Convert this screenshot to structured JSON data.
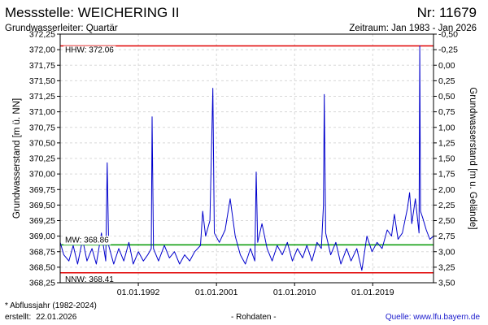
{
  "header": {
    "title": "Messstelle: WEICHERING II",
    "number": "Nr: 11679",
    "aquifer": "Grundwasserleiter: Quartär",
    "period": "Zeitraum: Jan 1983 - Jan 2026"
  },
  "footer": {
    "footnote": "* Abflussjahr (1982-2024)",
    "created_label": "erstellt:",
    "created_date": "22.01.2026",
    "raw": "- Rohdaten -",
    "source": "Quelle: www.lfu.bayern.de"
  },
  "chart_data": {
    "type": "line",
    "ylabel": "Grundwasserstand [m ü. NN]",
    "ylabel_right": "Grundwasserstand [m u. Gelände]",
    "ylim": [
      368.25,
      372.25
    ],
    "yticks": [
      "368,25",
      "368,50",
      "368,75",
      "369,00",
      "369,25",
      "369,50",
      "369,75",
      "370,00",
      "370,25",
      "370,50",
      "370,75",
      "371,00",
      "371,25",
      "371,50",
      "371,75",
      "372,00",
      "372,25"
    ],
    "ylim_right": [
      3.5,
      -0.5
    ],
    "yticks_right": [
      "3,50",
      "3,25",
      "3,00",
      "2,75",
      "2,50",
      "2,25",
      "2,00",
      "1,75",
      "1,50",
      "1,25",
      "1,00",
      "0,75",
      "0,50",
      "0,25",
      "0,00",
      "-0,25",
      "-0,50"
    ],
    "xlim": [
      "1983-01-01",
      "2026-01-01"
    ],
    "xticks": [
      {
        "date": "1992-01-01",
        "label": "01.01.1992"
      },
      {
        "date": "2001-01-01",
        "label": "01.01.2001"
      },
      {
        "date": "2010-01-01",
        "label": "01.01.2010"
      },
      {
        "date": "2019-01-01",
        "label": "01.01.2019"
      }
    ],
    "grid": true,
    "series_color": "#0000cc",
    "reference_lines": [
      {
        "name": "HHW",
        "label": "HHW: 372.06",
        "value": 372.06,
        "color": "#e00000"
      },
      {
        "name": "MW",
        "label": "MW: 368.86",
        "value": 368.86,
        "color": "#009900"
      },
      {
        "name": "NNW",
        "label": "NNW: 368.41",
        "value": 368.41,
        "color": "#e00000"
      }
    ],
    "series": [
      {
        "points": [
          [
            "1983-01-01",
            368.9
          ],
          [
            "1983-06-01",
            368.7
          ],
          [
            "1984-01-01",
            368.6
          ],
          [
            "1984-07-01",
            368.85
          ],
          [
            "1985-01-01",
            368.55
          ],
          [
            "1985-08-01",
            368.95
          ],
          [
            "1986-02-01",
            368.6
          ],
          [
            "1986-09-01",
            368.8
          ],
          [
            "1987-03-01",
            368.55
          ],
          [
            "1987-10-01",
            369.05
          ],
          [
            "1988-04-01",
            368.6
          ],
          [
            "1988-06-01",
            370.18
          ],
          [
            "1988-08-01",
            368.85
          ],
          [
            "1989-03-01",
            368.55
          ],
          [
            "1989-10-01",
            368.8
          ],
          [
            "1990-05-01",
            368.6
          ],
          [
            "1990-12-01",
            368.9
          ],
          [
            "1991-06-01",
            368.55
          ],
          [
            "1992-01-01",
            368.75
          ],
          [
            "1992-08-01",
            368.6
          ],
          [
            "1993-02-01",
            368.7
          ],
          [
            "1993-07-01",
            368.8
          ],
          [
            "1993-08-01",
            370.92
          ],
          [
            "1993-10-01",
            368.8
          ],
          [
            "1994-05-01",
            368.6
          ],
          [
            "1995-01-01",
            368.85
          ],
          [
            "1995-08-01",
            368.65
          ],
          [
            "1996-03-01",
            368.75
          ],
          [
            "1996-10-01",
            368.55
          ],
          [
            "1997-05-01",
            368.7
          ],
          [
            "1997-12-01",
            368.6
          ],
          [
            "1998-07-01",
            368.75
          ],
          [
            "1999-03-01",
            368.85
          ],
          [
            "1999-06-01",
            369.4
          ],
          [
            "1999-10-01",
            369.0
          ],
          [
            "2000-04-01",
            369.25
          ],
          [
            "2000-08-01",
            371.38
          ],
          [
            "2000-10-01",
            369.05
          ],
          [
            "2001-05-01",
            368.9
          ],
          [
            "2002-01-01",
            369.1
          ],
          [
            "2002-08-01",
            369.6
          ],
          [
            "2003-03-01",
            369.0
          ],
          [
            "2003-10-01",
            368.7
          ],
          [
            "2004-05-01",
            368.55
          ],
          [
            "2004-12-01",
            368.8
          ],
          [
            "2005-06-01",
            368.6
          ],
          [
            "2005-08-01",
            370.03
          ],
          [
            "2005-10-01",
            368.9
          ],
          [
            "2006-04-01",
            369.2
          ],
          [
            "2006-11-01",
            368.8
          ],
          [
            "2007-06-01",
            368.6
          ],
          [
            "2008-01-01",
            368.85
          ],
          [
            "2008-08-01",
            368.7
          ],
          [
            "2009-03-01",
            368.9
          ],
          [
            "2009-10-01",
            368.6
          ],
          [
            "2010-05-01",
            368.8
          ],
          [
            "2010-12-01",
            368.65
          ],
          [
            "2011-06-01",
            368.85
          ],
          [
            "2012-01-01",
            368.6
          ],
          [
            "2012-08-01",
            368.9
          ],
          [
            "2013-02-01",
            368.8
          ],
          [
            "2013-05-01",
            369.5
          ],
          [
            "2013-06-01",
            371.28
          ],
          [
            "2013-08-01",
            369.05
          ],
          [
            "2014-03-01",
            368.7
          ],
          [
            "2014-10-01",
            368.9
          ],
          [
            "2015-05-01",
            368.55
          ],
          [
            "2016-01-01",
            368.8
          ],
          [
            "2016-07-01",
            368.6
          ],
          [
            "2017-03-01",
            368.8
          ],
          [
            "2017-10-01",
            368.45
          ],
          [
            "2018-05-01",
            369.0
          ],
          [
            "2018-12-01",
            368.75
          ],
          [
            "2019-07-01",
            368.9
          ],
          [
            "2020-02-01",
            368.8
          ],
          [
            "2020-09-01",
            369.1
          ],
          [
            "2021-03-01",
            369.0
          ],
          [
            "2021-07-01",
            369.35
          ],
          [
            "2021-12-01",
            368.95
          ],
          [
            "2022-06-01",
            369.05
          ],
          [
            "2023-01-01",
            369.45
          ],
          [
            "2023-04-01",
            369.7
          ],
          [
            "2023-07-01",
            369.2
          ],
          [
            "2023-12-01",
            369.6
          ],
          [
            "2024-05-01",
            369.05
          ],
          [
            "2024-06-01",
            372.06
          ],
          [
            "2024-07-01",
            369.4
          ],
          [
            "2024-10-01",
            369.3
          ],
          [
            "2025-03-01",
            369.1
          ],
          [
            "2025-08-01",
            368.95
          ],
          [
            "2026-01-01",
            369.0
          ]
        ]
      }
    ]
  }
}
